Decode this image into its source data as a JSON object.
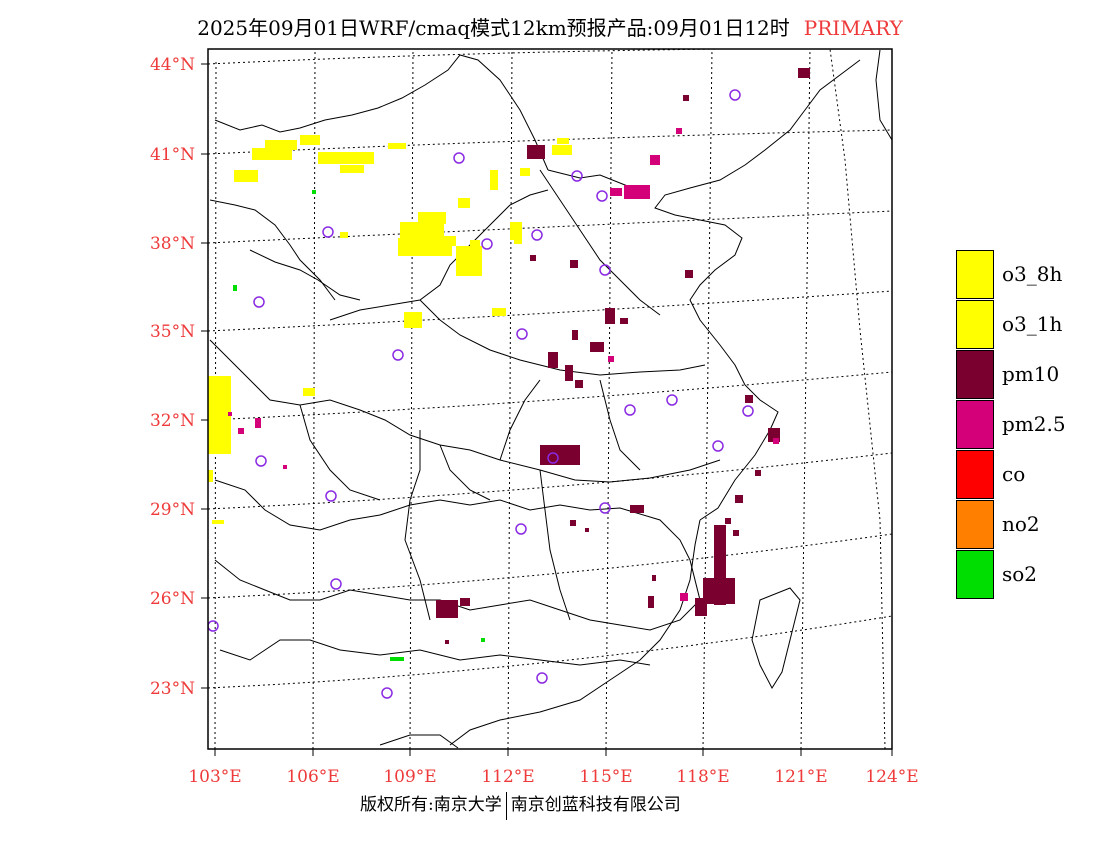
{
  "header": {
    "title": "2025年09月01日WRF/cmaq模式12km预报产品:09月01日12时",
    "tag": "PRIMARY"
  },
  "map": {
    "lon_labels": [
      "103°E",
      "106°E",
      "109°E",
      "112°E",
      "115°E",
      "118°E",
      "121°E",
      "124°E"
    ],
    "lat_labels": [
      "44°N",
      "41°N",
      "38°N",
      "35°N",
      "32°N",
      "29°N",
      "26°N",
      "23°N"
    ],
    "label_color": "#ee3a3a"
  },
  "legend": [
    {
      "label": "o3_8h",
      "color": "#ffff00"
    },
    {
      "label": "o3_1h",
      "color": "#ffff00"
    },
    {
      "label": "pm10",
      "color": "#7a0030"
    },
    {
      "label": "pm2.5",
      "color": "#d3007a"
    },
    {
      "label": "co",
      "color": "#ff0000"
    },
    {
      "label": "no2",
      "color": "#ff7f00"
    },
    {
      "label": "so2",
      "color": "#00dd00"
    }
  ],
  "footer": {
    "left": "版权所有:南京大学",
    "right": "南京创蓝科技有限公司"
  }
}
